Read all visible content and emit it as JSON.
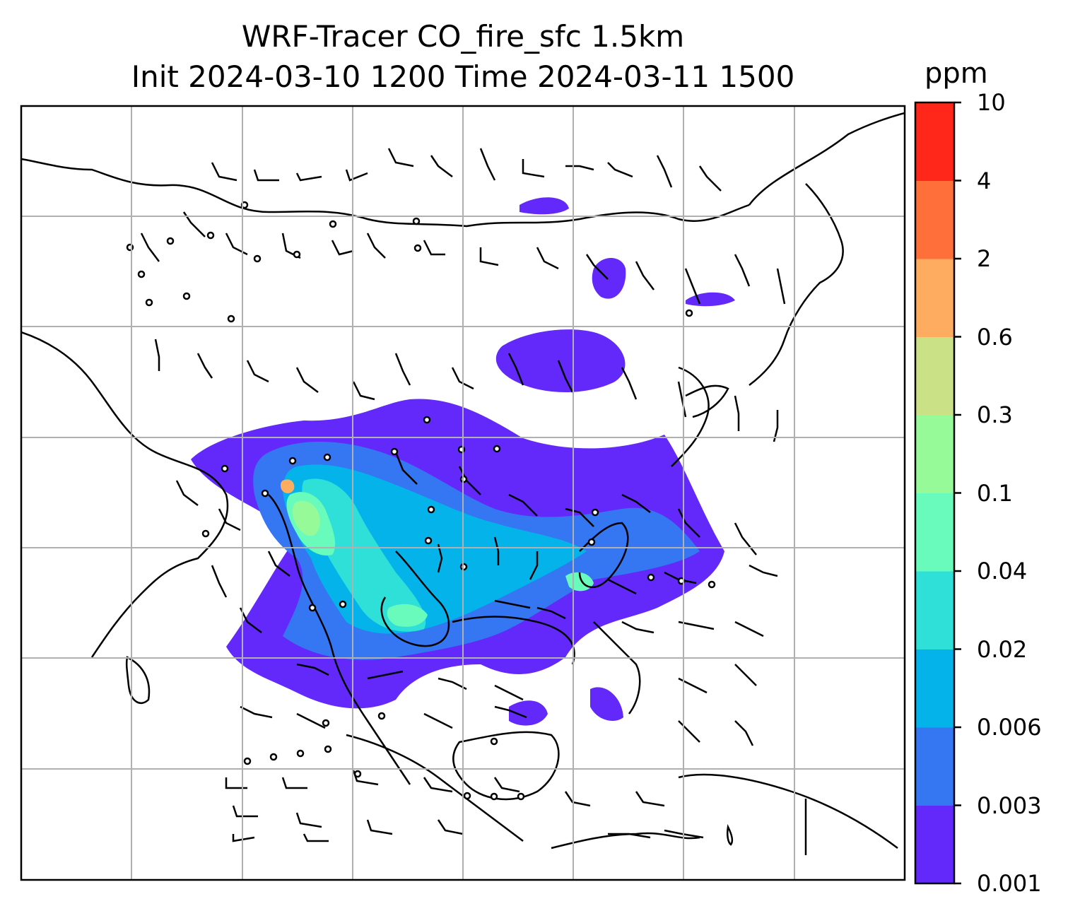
{
  "title": {
    "line1": "WRF-Tracer CO_fire_sfc 1.5km",
    "line2": "Init 2024-03-10 1200 Time 2024-03-11 1500"
  },
  "colorbar": {
    "units": "ppm",
    "levels": [
      "0.001",
      "0.003",
      "0.006",
      "0.02",
      "0.04",
      "0.1",
      "0.3",
      "0.6",
      "2",
      "4",
      "10"
    ],
    "colors": [
      "#6329fa",
      "#3576f2",
      "#04b3ea",
      "#2ee0d7",
      "#68fbbc",
      "#97fa99",
      "#cbe185",
      "#fead60",
      "#fe6f3a",
      "#ff2719"
    ]
  },
  "map": {
    "gridlines": true,
    "coastline_color": "#000000",
    "grid_color": "#b0b0b0"
  }
}
